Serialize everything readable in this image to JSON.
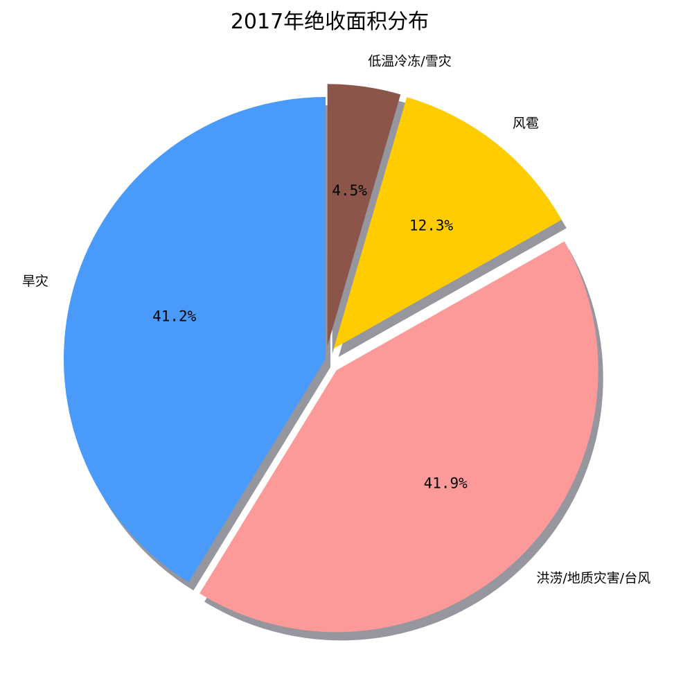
{
  "chart_data": {
    "type": "pie",
    "title": "2017年绝收面积分布",
    "start_angle_deg": 90,
    "direction": "counterclockwise",
    "shadow": true,
    "slices": [
      {
        "label": "旱灾",
        "value": 41.2,
        "pct_label": "41.2%",
        "color": "#4a9afa",
        "explode": 0.0
      },
      {
        "label": "洪涝/地质灾害/台风",
        "value": 41.9,
        "pct_label": "41.9%",
        "color": "#fb9a99",
        "explode": 0.06
      },
      {
        "label": "风雹",
        "value": 12.3,
        "pct_label": "12.3%",
        "color": "#ffcc00",
        "explode": 0.05
      },
      {
        "label": "低温冷冻/雪灾",
        "value": 4.5,
        "pct_label": "4.5%",
        "color": "#8b5649",
        "explode": 0.05
      }
    ]
  }
}
